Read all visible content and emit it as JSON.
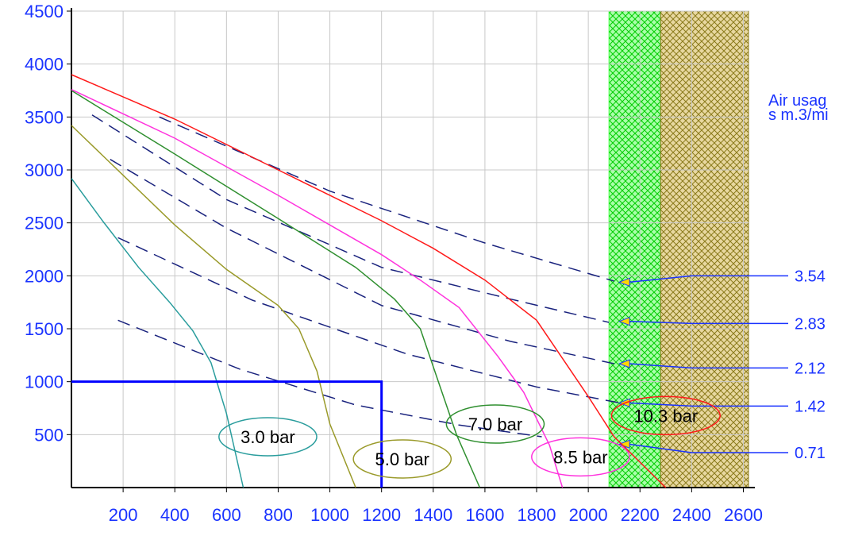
{
  "chart_data": {
    "type": "line",
    "title": "",
    "xlabel": "",
    "ylabel": "",
    "xlim": [
      0,
      2620
    ],
    "ylim": [
      0,
      4500
    ],
    "x_ticks": [
      200,
      400,
      600,
      800,
      1000,
      1200,
      1400,
      1600,
      1800,
      2000,
      2200,
      2400,
      2600
    ],
    "y_ticks": [
      500,
      1000,
      1500,
      2000,
      2500,
      3000,
      3500,
      4000,
      4500
    ],
    "grid": true,
    "legend": "none",
    "pressure_curves": [
      {
        "label": "3.0 bar",
        "color": "#2a9d9d",
        "points": [
          [
            0,
            2920
          ],
          [
            120,
            2520
          ],
          [
            260,
            2080
          ],
          [
            380,
            1750
          ],
          [
            470,
            1480
          ],
          [
            540,
            1180
          ],
          [
            600,
            700
          ],
          [
            665,
            0
          ]
        ],
        "label_pos": [
          760,
          480
        ]
      },
      {
        "label": "5.0 bar",
        "color": "#9a9a2a",
        "points": [
          [
            0,
            3420
          ],
          [
            200,
            2950
          ],
          [
            400,
            2480
          ],
          [
            600,
            2060
          ],
          [
            800,
            1720
          ],
          [
            880,
            1500
          ],
          [
            950,
            1100
          ],
          [
            1000,
            600
          ],
          [
            1100,
            0
          ]
        ],
        "label_pos": [
          1280,
          270
        ]
      },
      {
        "label": "7.0 bar",
        "color": "#2f8f2f",
        "points": [
          [
            0,
            3750
          ],
          [
            400,
            3150
          ],
          [
            800,
            2540
          ],
          [
            1100,
            2080
          ],
          [
            1250,
            1780
          ],
          [
            1350,
            1500
          ],
          [
            1420,
            1000
          ],
          [
            1490,
            500
          ],
          [
            1580,
            0
          ]
        ],
        "label_pos": [
          1640,
          600
        ]
      },
      {
        "label": "8.5 bar",
        "color": "#ff33dd",
        "points": [
          [
            0,
            3760
          ],
          [
            400,
            3300
          ],
          [
            800,
            2760
          ],
          [
            1200,
            2200
          ],
          [
            1350,
            1960
          ],
          [
            1500,
            1700
          ],
          [
            1650,
            1240
          ],
          [
            1750,
            900
          ],
          [
            1850,
            400
          ],
          [
            1900,
            0
          ]
        ],
        "label_pos": [
          1970,
          290
        ]
      },
      {
        "label": "10.3 bar",
        "color": "#ff1a1a",
        "points": [
          [
            0,
            3900
          ],
          [
            400,
            3480
          ],
          [
            800,
            3000
          ],
          [
            1200,
            2520
          ],
          [
            1400,
            2260
          ],
          [
            1600,
            1960
          ],
          [
            1800,
            1580
          ],
          [
            1900,
            1220
          ],
          [
            2000,
            860
          ],
          [
            2100,
            480
          ],
          [
            2300,
            0
          ]
        ],
        "label_pos": [
          2300,
          680
        ]
      }
    ],
    "air_usage_lines": [
      {
        "label": "3.54",
        "points": [
          [
            340,
            3500
          ],
          [
            1000,
            2800
          ],
          [
            1600,
            2310
          ],
          [
            2100,
            1950
          ]
        ],
        "arrow_target": 1940
      },
      {
        "label": "2.83",
        "points": [
          [
            80,
            3520
          ],
          [
            600,
            2720
          ],
          [
            1200,
            2080
          ],
          [
            1700,
            1780
          ],
          [
            2080,
            1560
          ]
        ],
        "arrow_target": 1570
      },
      {
        "label": "2.12",
        "points": [
          [
            150,
            3100
          ],
          [
            600,
            2450
          ],
          [
            1200,
            1720
          ],
          [
            1700,
            1380
          ],
          [
            2100,
            1170
          ]
        ],
        "arrow_target": 1170
      },
      {
        "label": "1.42",
        "points": [
          [
            180,
            2360
          ],
          [
            700,
            1770
          ],
          [
            1300,
            1260
          ],
          [
            1800,
            950
          ],
          [
            2120,
            800
          ]
        ],
        "arrow_target": 800
      },
      {
        "label": "0.71",
        "points": [
          [
            180,
            1580
          ],
          [
            650,
            1120
          ],
          [
            1100,
            780
          ],
          [
            1500,
            590
          ],
          [
            1820,
            480
          ]
        ],
        "arrow_target": 410
      }
    ],
    "air_usage_label_y": [
      2000,
      1550,
      1130,
      770,
      330
    ],
    "usage_title": [
      "Air usag",
      "s m.3/mi"
    ],
    "operating_point": {
      "x": 1200,
      "y": 1000
    },
    "zones": [
      {
        "name": "green-zone",
        "x_start": 2080,
        "x_end": 2280,
        "color": "#3cff3c"
      },
      {
        "name": "olive-zone",
        "x_start": 2280,
        "x_end": 2620,
        "color": "#8a7a1a"
      }
    ]
  }
}
